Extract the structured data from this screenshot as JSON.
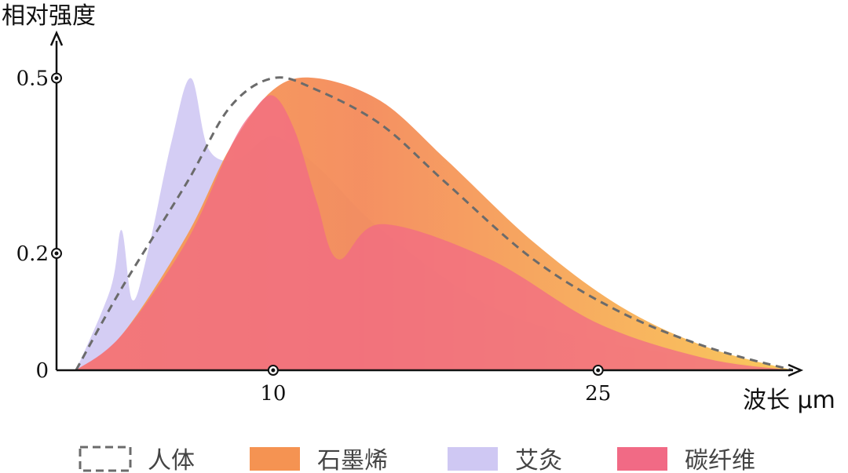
{
  "chart_data": {
    "type": "area",
    "ylabel": "相对强度",
    "xlabel": "波长 μm",
    "yticks": [
      {
        "value": 0,
        "label": "0"
      },
      {
        "value": 0.2,
        "label": "0.2"
      },
      {
        "value": 0.5,
        "label": "0.5"
      }
    ],
    "xticks": [
      {
        "value": 10,
        "label": "10"
      },
      {
        "value": 25,
        "label": "25"
      }
    ],
    "xlim": [
      0,
      34
    ],
    "ylim": [
      0,
      0.58
    ],
    "grid": false,
    "legend_position": "bottom",
    "series": [
      {
        "name": "艾灸",
        "style": "filled",
        "color": "#cfc8f3",
        "x": [
          0.9,
          2.5,
          3.0,
          3.5,
          4.2,
          5.3,
          6.2,
          7.0,
          8.3,
          10.0,
          12.0,
          15.0,
          20.0,
          25.0,
          30.0,
          34.0
        ],
        "y": [
          0,
          0.14,
          0.24,
          0.12,
          0.2,
          0.39,
          0.5,
          0.38,
          0.36,
          0.4,
          0.35,
          0.24,
          0.11,
          0.05,
          0.02,
          0
        ]
      },
      {
        "name": "石墨烯",
        "style": "filled",
        "color": "#f59352",
        "x": [
          0.9,
          3.0,
          6.0,
          8.0,
          10.0,
          12.0,
          15.0,
          18.0,
          22.0,
          26.0,
          30.0,
          34.0
        ],
        "y": [
          0,
          0.06,
          0.23,
          0.38,
          0.48,
          0.5,
          0.46,
          0.36,
          0.22,
          0.11,
          0.04,
          0
        ]
      },
      {
        "name": "碳纤维",
        "style": "filled",
        "color": "#f16a85",
        "x": [
          0.9,
          3.0,
          6.0,
          8.0,
          9.0,
          10.0,
          11.0,
          12.0,
          13.0,
          15.0,
          20.0,
          25.0,
          30.0,
          34.0
        ],
        "y": [
          0,
          0.06,
          0.22,
          0.38,
          0.44,
          0.47,
          0.41,
          0.29,
          0.19,
          0.25,
          0.19,
          0.08,
          0.02,
          0
        ]
      },
      {
        "name": "人体",
        "style": "dashed",
        "color": "#6b6b6b",
        "x": [
          0.9,
          3.0,
          6.0,
          8.0,
          10.0,
          12.0,
          15.0,
          18.0,
          22.0,
          26.0,
          30.0,
          34.0
        ],
        "y": [
          0,
          0.14,
          0.32,
          0.45,
          0.5,
          0.48,
          0.42,
          0.32,
          0.19,
          0.1,
          0.04,
          0
        ]
      }
    ],
    "legend": [
      {
        "label": "人体",
        "style": "dashed",
        "color": "#6b6b6b"
      },
      {
        "label": "石墨烯",
        "style": "filled",
        "color": "#f59352"
      },
      {
        "label": "艾灸",
        "style": "filled",
        "color": "#cfc8f3"
      },
      {
        "label": "碳纤维",
        "style": "filled",
        "color": "#f16a85"
      }
    ]
  }
}
